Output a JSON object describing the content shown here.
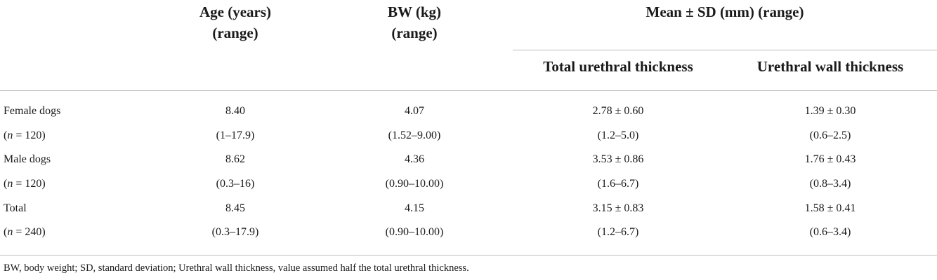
{
  "header": {
    "age_line1": "Age (years)",
    "age_line2": "(range)",
    "bw_line1": "BW (kg)",
    "bw_line2": "(range)",
    "mean_sd": "Mean ± SD (mm) (range)",
    "total_urethral": "Total urethral thickness",
    "urethral_wall": "Urethral wall thickness"
  },
  "rows": [
    {
      "label": "Female dogs",
      "n_prefix": "(",
      "n_var": "n",
      "n_rest": " = 120)",
      "age": "8.40",
      "age_range": "(1–17.9)",
      "bw": "4.07",
      "bw_range": "(1.52–9.00)",
      "total_ut": "2.78 ± 0.60",
      "total_ut_range": "(1.2–5.0)",
      "wall_ut": "1.39 ± 0.30",
      "wall_ut_range": "(0.6–2.5)"
    },
    {
      "label": "Male dogs",
      "n_prefix": "(",
      "n_var": "n",
      "n_rest": " = 120)",
      "age": "8.62",
      "age_range": "(0.3–16)",
      "bw": "4.36",
      "bw_range": "(0.90–10.00)",
      "total_ut": "3.53 ± 0.86",
      "total_ut_range": "(1.6–6.7)",
      "wall_ut": "1.76 ± 0.43",
      "wall_ut_range": "(0.8–3.4)"
    },
    {
      "label": "Total",
      "n_prefix": "(",
      "n_var": "n",
      "n_rest": " = 240)",
      "age": "8.45",
      "age_range": "(0.3–17.9)",
      "bw": "4.15",
      "bw_range": "(0.90–10.00)",
      "total_ut": "3.15 ± 0.83",
      "total_ut_range": "(1.2–6.7)",
      "wall_ut": "1.58 ± 0.41",
      "wall_ut_range": "(0.6–3.4)"
    }
  ],
  "footnote": "BW, body weight; SD, standard deviation; Urethral wall thickness, value assumed half the total urethral thickness."
}
